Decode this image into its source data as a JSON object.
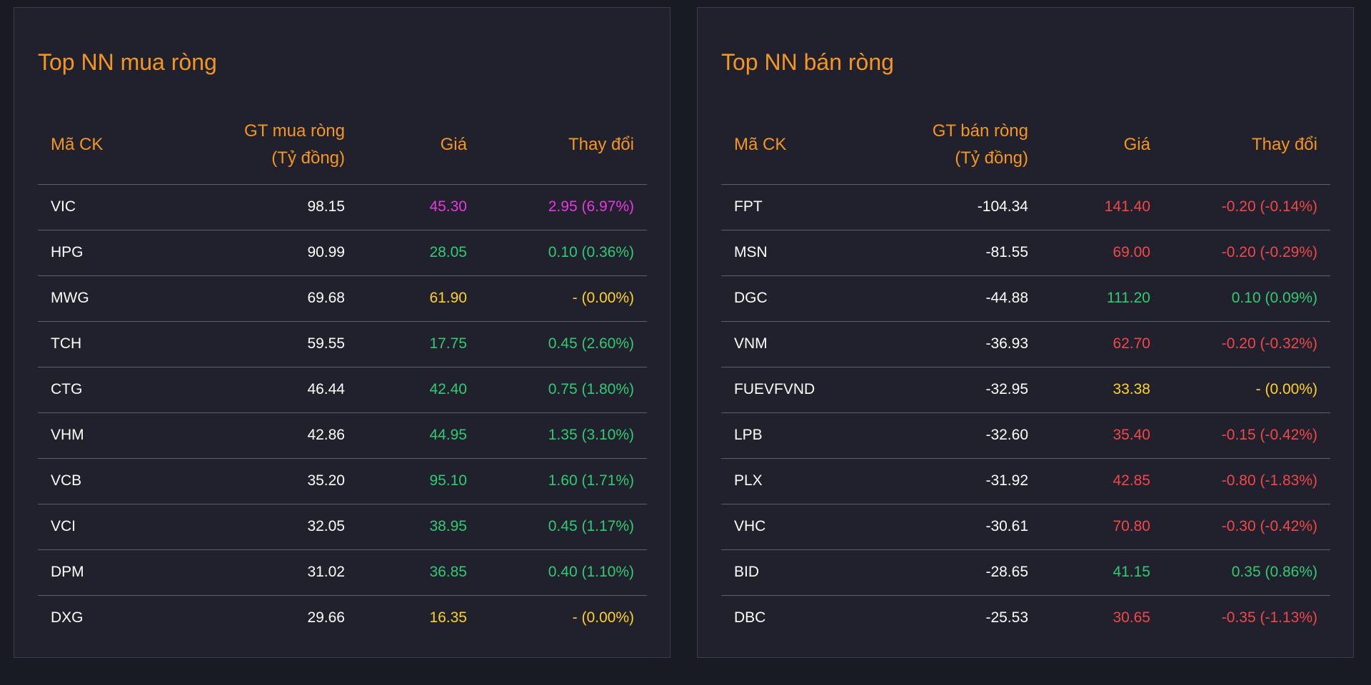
{
  "colors": {
    "background": "#181a24",
    "panel": "#20212d",
    "accent": "#f5961e",
    "up": "#2ecc71",
    "down": "#f04848",
    "reference": "#ffd21f",
    "ceiling": "#e838e0"
  },
  "panels": [
    {
      "title": "Top NN mua ròng",
      "headers": {
        "symbol": "Mã CK",
        "value_line1": "GT mua ròng",
        "value_line2": "(Tỷ đồng)",
        "price": "Giá",
        "change": "Thay đổi"
      },
      "rows": [
        {
          "symbol": "VIC",
          "value": "98.15",
          "price": "45.30",
          "change": "2.95 (6.97%)",
          "status": "ceil"
        },
        {
          "symbol": "HPG",
          "value": "90.99",
          "price": "28.05",
          "change": "0.10 (0.36%)",
          "status": "up"
        },
        {
          "symbol": "MWG",
          "value": "69.68",
          "price": "61.90",
          "change": "- (0.00%)",
          "status": "ref"
        },
        {
          "symbol": "TCH",
          "value": "59.55",
          "price": "17.75",
          "change": "0.45 (2.60%)",
          "status": "up"
        },
        {
          "symbol": "CTG",
          "value": "46.44",
          "price": "42.40",
          "change": "0.75 (1.80%)",
          "status": "up"
        },
        {
          "symbol": "VHM",
          "value": "42.86",
          "price": "44.95",
          "change": "1.35 (3.10%)",
          "status": "up"
        },
        {
          "symbol": "VCB",
          "value": "35.20",
          "price": "95.10",
          "change": "1.60 (1.71%)",
          "status": "up"
        },
        {
          "symbol": "VCI",
          "value": "32.05",
          "price": "38.95",
          "change": "0.45 (1.17%)",
          "status": "up"
        },
        {
          "symbol": "DPM",
          "value": "31.02",
          "price": "36.85",
          "change": "0.40 (1.10%)",
          "status": "up"
        },
        {
          "symbol": "DXG",
          "value": "29.66",
          "price": "16.35",
          "change": "- (0.00%)",
          "status": "ref"
        }
      ]
    },
    {
      "title": "Top NN bán ròng",
      "headers": {
        "symbol": "Mã CK",
        "value_line1": "GT bán ròng",
        "value_line2": "(Tỷ đồng)",
        "price": "Giá",
        "change": "Thay đổi"
      },
      "rows": [
        {
          "symbol": "FPT",
          "value": "-104.34",
          "price": "141.40",
          "change": "-0.20 (-0.14%)",
          "status": "down"
        },
        {
          "symbol": "MSN",
          "value": "-81.55",
          "price": "69.00",
          "change": "-0.20 (-0.29%)",
          "status": "down"
        },
        {
          "symbol": "DGC",
          "value": "-44.88",
          "price": "111.20",
          "change": "0.10 (0.09%)",
          "status": "up"
        },
        {
          "symbol": "VNM",
          "value": "-36.93",
          "price": "62.70",
          "change": "-0.20 (-0.32%)",
          "status": "down"
        },
        {
          "symbol": "FUEVFVND",
          "value": "-32.95",
          "price": "33.38",
          "change": "- (0.00%)",
          "status": "ref"
        },
        {
          "symbol": "LPB",
          "value": "-32.60",
          "price": "35.40",
          "change": "-0.15 (-0.42%)",
          "status": "down"
        },
        {
          "symbol": "PLX",
          "value": "-31.92",
          "price": "42.85",
          "change": "-0.80 (-1.83%)",
          "status": "down"
        },
        {
          "symbol": "VHC",
          "value": "-30.61",
          "price": "70.80",
          "change": "-0.30 (-0.42%)",
          "status": "down"
        },
        {
          "symbol": "BID",
          "value": "-28.65",
          "price": "41.15",
          "change": "0.35 (0.86%)",
          "status": "up"
        },
        {
          "symbol": "DBC",
          "value": "-25.53",
          "price": "30.65",
          "change": "-0.35 (-1.13%)",
          "status": "down"
        }
      ]
    }
  ]
}
